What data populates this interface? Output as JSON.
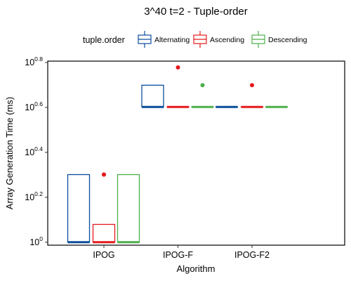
{
  "chart_data": {
    "type": "boxplot",
    "title": "3^40 t=2 - Tuple-order",
    "xlabel": "Algorithm",
    "ylabel": "Array Generation Time (ms)",
    "y_scale": "log10",
    "ylim": [
      0.97,
      6.4
    ],
    "y_ticks": [
      {
        "base": "10",
        "exp": "0",
        "value": 1
      },
      {
        "base": "10",
        "exp": "0.2",
        "value": 1.585
      },
      {
        "base": "10",
        "exp": "0.4",
        "value": 2.512
      },
      {
        "base": "10",
        "exp": "0.6",
        "value": 3.981
      },
      {
        "base": "10",
        "exp": "0.8",
        "value": 6.31
      }
    ],
    "categories": [
      "IPOG",
      "IPOG-F",
      "IPOG-F2"
    ],
    "legend": {
      "title": "tuple.order",
      "position": "top"
    },
    "grid": false,
    "series": [
      {
        "name": "Alternating",
        "color": "#0b4d9c",
        "boxes": [
          {
            "q1": 1,
            "median": 1,
            "q3": 2,
            "outliers": []
          },
          {
            "q1": 4,
            "median": 4,
            "q3": 5,
            "outliers": []
          },
          {
            "q1": 4,
            "median": 4,
            "q3": 4,
            "outliers": []
          }
        ]
      },
      {
        "name": "Ascending",
        "color": "#e41a1c",
        "boxes": [
          {
            "q1": 1,
            "median": 1,
            "q3": 1.2,
            "outliers": [
              2,
              2
            ]
          },
          {
            "q1": 4,
            "median": 4,
            "q3": 4,
            "outliers": [
              6
            ]
          },
          {
            "q1": 4,
            "median": 4,
            "q3": 4,
            "outliers": [
              5
            ]
          }
        ]
      },
      {
        "name": "Descending",
        "color": "#4daf4a",
        "boxes": [
          {
            "q1": 1,
            "median": 1,
            "q3": 2,
            "outliers": []
          },
          {
            "q1": 4,
            "median": 4,
            "q3": 4,
            "outliers": [
              5
            ]
          },
          {
            "q1": 4,
            "median": 4,
            "q3": 4,
            "outliers": []
          }
        ]
      }
    ]
  }
}
